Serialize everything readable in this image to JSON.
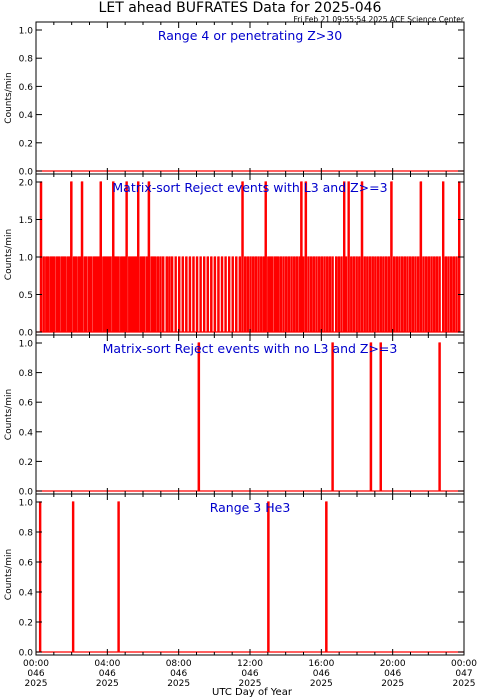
{
  "title": "LET ahead BUFRATES Data for 2025-046",
  "timestamp": "Fri Feb 21 09:55:54 2025 ACE Science Center",
  "xlabel": "UTC Day of Year",
  "x_ticks": [
    {
      "time": "00:00",
      "doy": "046",
      "year": "2025"
    },
    {
      "time": "04:00",
      "doy": "046",
      "year": "2025"
    },
    {
      "time": "08:00",
      "doy": "046",
      "year": "2025"
    },
    {
      "time": "12:00",
      "doy": "046",
      "year": "2025"
    },
    {
      "time": "16:00",
      "doy": "046",
      "year": "2025"
    },
    {
      "time": "20:00",
      "doy": "046",
      "year": "2025"
    },
    {
      "time": "00:00",
      "doy": "047",
      "year": "2025"
    }
  ],
  "colors": {
    "data": "#ff0000",
    "panel_title": "#0000cc",
    "axis": "#000000"
  },
  "chart_data": [
    {
      "type": "line",
      "title": "Range 4 or  penetrating Z>30",
      "ylabel": "Counts/min",
      "xlim": [
        0,
        24
      ],
      "ylim": [
        0,
        1.0
      ],
      "yticks": [
        "0.0",
        "0.2",
        "0.4",
        "0.6",
        "0.8",
        "1.0"
      ],
      "baseline": 0,
      "spikes": []
    },
    {
      "type": "line",
      "title": "Matrix-sort Reject events with L3 and Z>=3",
      "ylabel": "Counts/min",
      "xlim": [
        0,
        24
      ],
      "ylim": [
        0,
        2.0
      ],
      "yticks": [
        "0.0",
        "0.5",
        "1.0",
        "1.5",
        "2.0"
      ],
      "baseline": 0,
      "spikes": [
        [
          0.25,
          2
        ],
        [
          0.4,
          1
        ],
        [
          0.55,
          1
        ],
        [
          0.65,
          1
        ],
        [
          0.8,
          1
        ],
        [
          0.9,
          1
        ],
        [
          1.0,
          1
        ],
        [
          1.15,
          1
        ],
        [
          1.25,
          1
        ],
        [
          1.4,
          1
        ],
        [
          1.5,
          1
        ],
        [
          1.6,
          1
        ],
        [
          1.75,
          1
        ],
        [
          1.85,
          1
        ],
        [
          1.95,
          2
        ],
        [
          2.1,
          1
        ],
        [
          2.2,
          1
        ],
        [
          2.35,
          1
        ],
        [
          2.45,
          1
        ],
        [
          2.55,
          2
        ],
        [
          2.7,
          1
        ],
        [
          2.8,
          1
        ],
        [
          2.95,
          1
        ],
        [
          3.05,
          1
        ],
        [
          3.2,
          1
        ],
        [
          3.3,
          1
        ],
        [
          3.4,
          1
        ],
        [
          3.5,
          1
        ],
        [
          3.6,
          2
        ],
        [
          3.75,
          1
        ],
        [
          3.85,
          1
        ],
        [
          3.95,
          1
        ],
        [
          4.05,
          1
        ],
        [
          4.15,
          1
        ],
        [
          4.3,
          2
        ],
        [
          4.4,
          1
        ],
        [
          4.5,
          1
        ],
        [
          4.6,
          1
        ],
        [
          4.75,
          1
        ],
        [
          4.85,
          1
        ],
        [
          4.95,
          1
        ],
        [
          5.05,
          2
        ],
        [
          5.2,
          1
        ],
        [
          5.3,
          1
        ],
        [
          5.4,
          1
        ],
        [
          5.5,
          1
        ],
        [
          5.6,
          1
        ],
        [
          5.7,
          2
        ],
        [
          5.85,
          1
        ],
        [
          5.95,
          1
        ],
        [
          6.05,
          1
        ],
        [
          6.2,
          1
        ],
        [
          6.3,
          2
        ],
        [
          6.45,
          1
        ],
        [
          6.55,
          1
        ],
        [
          6.65,
          1
        ],
        [
          6.8,
          1
        ],
        [
          6.95,
          1
        ],
        [
          7.1,
          1
        ],
        [
          7.3,
          1
        ],
        [
          7.45,
          1
        ],
        [
          7.6,
          1
        ],
        [
          7.8,
          1
        ],
        [
          8.0,
          1
        ],
        [
          8.2,
          1
        ],
        [
          8.4,
          1
        ],
        [
          8.6,
          1
        ],
        [
          8.8,
          1
        ],
        [
          9.0,
          1
        ],
        [
          9.2,
          1
        ],
        [
          9.4,
          1
        ],
        [
          9.6,
          1
        ],
        [
          9.8,
          1
        ],
        [
          10.0,
          1
        ],
        [
          10.2,
          1
        ],
        [
          10.4,
          1
        ],
        [
          10.6,
          1
        ],
        [
          10.8,
          1
        ],
        [
          11.0,
          1
        ],
        [
          11.2,
          1
        ],
        [
          11.4,
          1
        ],
        [
          11.55,
          2
        ],
        [
          11.7,
          1
        ],
        [
          11.85,
          1
        ],
        [
          12.0,
          1
        ],
        [
          12.15,
          1
        ],
        [
          12.3,
          1
        ],
        [
          12.45,
          1
        ],
        [
          12.6,
          1
        ],
        [
          12.75,
          1
        ],
        [
          12.85,
          2
        ],
        [
          13.0,
          1
        ],
        [
          13.1,
          1
        ],
        [
          13.2,
          1
        ],
        [
          13.35,
          1
        ],
        [
          13.45,
          1
        ],
        [
          13.55,
          1
        ],
        [
          13.7,
          1
        ],
        [
          13.85,
          1
        ],
        [
          14.0,
          1
        ],
        [
          14.15,
          1
        ],
        [
          14.3,
          1
        ],
        [
          14.45,
          1
        ],
        [
          14.6,
          1
        ],
        [
          14.75,
          1
        ],
        [
          14.85,
          2
        ],
        [
          14.95,
          1
        ],
        [
          15.1,
          2
        ],
        [
          15.25,
          1
        ],
        [
          15.4,
          1
        ],
        [
          15.55,
          1
        ],
        [
          15.7,
          1
        ],
        [
          15.85,
          1
        ],
        [
          16.0,
          1
        ],
        [
          16.15,
          1
        ],
        [
          16.3,
          1
        ],
        [
          16.45,
          1
        ],
        [
          16.6,
          1
        ],
        [
          16.8,
          1
        ],
        [
          16.95,
          1
        ],
        [
          17.1,
          1
        ],
        [
          17.25,
          2
        ],
        [
          17.35,
          1
        ],
        [
          17.5,
          2
        ],
        [
          17.65,
          1
        ],
        [
          17.8,
          1
        ],
        [
          17.95,
          1
        ],
        [
          18.1,
          1
        ],
        [
          18.25,
          2
        ],
        [
          18.4,
          1
        ],
        [
          18.55,
          1
        ],
        [
          18.7,
          1
        ],
        [
          18.85,
          1
        ],
        [
          19.0,
          1
        ],
        [
          19.15,
          1
        ],
        [
          19.3,
          1
        ],
        [
          19.45,
          1
        ],
        [
          19.6,
          1
        ],
        [
          19.75,
          1
        ],
        [
          19.9,
          2
        ],
        [
          20.05,
          1
        ],
        [
          20.2,
          1
        ],
        [
          20.35,
          1
        ],
        [
          20.5,
          1
        ],
        [
          20.65,
          1
        ],
        [
          20.8,
          1
        ],
        [
          20.95,
          1
        ],
        [
          21.1,
          1
        ],
        [
          21.25,
          1
        ],
        [
          21.4,
          1
        ],
        [
          21.55,
          2
        ],
        [
          21.7,
          1
        ],
        [
          21.85,
          1
        ],
        [
          22.0,
          1
        ],
        [
          22.15,
          1
        ],
        [
          22.3,
          1
        ],
        [
          22.45,
          1
        ],
        [
          22.6,
          1
        ],
        [
          22.8,
          2
        ],
        [
          22.95,
          1
        ],
        [
          23.1,
          1
        ],
        [
          23.25,
          1
        ],
        [
          23.4,
          1
        ],
        [
          23.55,
          1
        ],
        [
          23.7,
          2
        ]
      ]
    },
    {
      "type": "line",
      "title": "Matrix-sort Reject events with no L3 and Z>=3",
      "ylabel": "Counts/min",
      "xlim": [
        0,
        24
      ],
      "ylim": [
        0,
        1.0
      ],
      "yticks": [
        "0.0",
        "0.2",
        "0.4",
        "0.6",
        "0.8",
        "1.0"
      ],
      "baseline": 0,
      "spikes": [
        [
          9.1,
          1
        ],
        [
          16.6,
          1
        ],
        [
          18.75,
          1
        ],
        [
          19.3,
          1
        ],
        [
          22.6,
          1
        ]
      ]
    },
    {
      "type": "line",
      "title": "Range 3 He3",
      "ylabel": "Counts/min",
      "xlim": [
        0,
        24
      ],
      "ylim": [
        0,
        1.0
      ],
      "yticks": [
        "0.0",
        "0.2",
        "0.4",
        "0.6",
        "0.8",
        "1.0"
      ],
      "baseline": 0,
      "spikes": [
        [
          0.2,
          1
        ],
        [
          2.05,
          1
        ],
        [
          4.6,
          1
        ],
        [
          13.0,
          1
        ],
        [
          16.25,
          1
        ]
      ]
    }
  ]
}
